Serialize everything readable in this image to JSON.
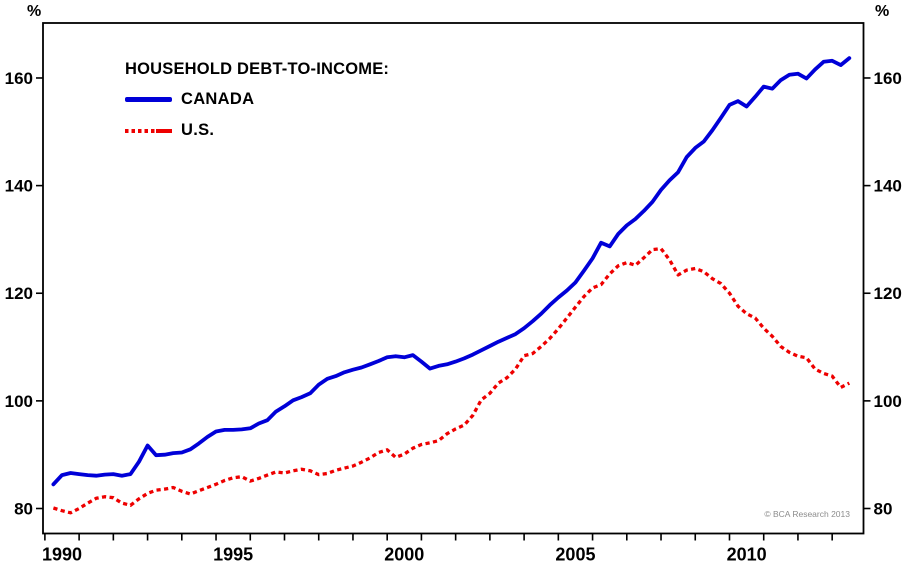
{
  "chart": {
    "percent_symbol_left": "%",
    "percent_symbol_right": "%",
    "legend_title": "HOUSEHOLD DEBT-TO-INCOME:",
    "copyright": "© BCA Research 2013",
    "colors": {
      "canada_line": "#0000d8",
      "us_line": "#ee0000",
      "axis": "#000000",
      "copyright_text": "#8c8c8c"
    }
  },
  "chart_data": {
    "type": "line",
    "title": "HOUSEHOLD DEBT-TO-INCOME:",
    "unit": "%",
    "grid": false,
    "legend_position": "top-left",
    "x_axis": {
      "tick_labels": [
        1990,
        1995,
        2000,
        2005,
        2010
      ],
      "minor_tick_start": 1989.5,
      "minor_tick_step": 1,
      "minor_tick_count": 24,
      "range": [
        1989.45,
        2013.4
      ]
    },
    "y_axis": {
      "tick_labels": [
        80,
        100,
        120,
        140,
        160
      ],
      "range": [
        75.3,
        170.2
      ],
      "tick_sides": [
        "left",
        "right"
      ]
    },
    "series": [
      {
        "name": "CANADA",
        "color": "#0000d8",
        "line_style": "solid",
        "x_start": 1989.75,
        "x_step": 0.25,
        "values": [
          84.5,
          86.2,
          86.6,
          86.4,
          86.2,
          86.1,
          86.3,
          86.4,
          86.1,
          86.4,
          88.7,
          91.7,
          89.9,
          90.0,
          90.3,
          90.4,
          91.0,
          92.1,
          93.3,
          94.3,
          94.6,
          94.6,
          94.7,
          94.9,
          95.8,
          96.4,
          98.0,
          99.0,
          100.1,
          100.7,
          101.4,
          103.0,
          104.1,
          104.6,
          105.3,
          105.8,
          106.2,
          106.8,
          107.4,
          108.1,
          108.3,
          108.1,
          108.5,
          107.3,
          106.0,
          106.5,
          106.8,
          107.3,
          107.9,
          108.6,
          109.4,
          110.2,
          111.0,
          111.7,
          112.4,
          113.5,
          114.8,
          116.2,
          117.8,
          119.2,
          120.5,
          122.0,
          124.2,
          126.5,
          129.4,
          128.7,
          131.0,
          132.6,
          133.8,
          135.3,
          137.0,
          139.2,
          141.0,
          142.5,
          145.3,
          147.0,
          148.2,
          150.3,
          152.6,
          155.0,
          155.7,
          154.7,
          156.5,
          158.4,
          158.0,
          159.6,
          160.6,
          160.8,
          159.9,
          161.6,
          163.0,
          163.2,
          162.4,
          163.7
        ]
      },
      {
        "name": "U.S.",
        "color": "#ee0000",
        "line_style": "dashed",
        "x_start": 1989.75,
        "x_step": 0.25,
        "values": [
          80.1,
          79.6,
          79.2,
          80.0,
          81.0,
          81.9,
          82.2,
          82.0,
          81.0,
          80.6,
          81.8,
          82.8,
          83.4,
          83.6,
          83.9,
          83.2,
          82.7,
          83.3,
          83.9,
          84.5,
          85.2,
          85.7,
          85.9,
          85.1,
          85.6,
          86.2,
          86.8,
          86.6,
          87.0,
          87.3,
          87.0,
          86.3,
          86.5,
          87.1,
          87.5,
          87.9,
          88.6,
          89.4,
          90.4,
          90.9,
          89.5,
          90.1,
          91.2,
          91.9,
          92.2,
          92.6,
          93.9,
          94.8,
          95.5,
          97.3,
          100.2,
          101.4,
          103.3,
          104.3,
          105.9,
          108.4,
          108.8,
          110.1,
          111.6,
          113.4,
          115.4,
          117.4,
          119.4,
          121.0,
          121.6,
          123.6,
          125.1,
          125.7,
          125.2,
          126.6,
          128.1,
          128.3,
          126.2,
          123.4,
          124.3,
          124.6,
          124.0,
          122.7,
          121.8,
          120.0,
          117.6,
          116.2,
          115.4,
          113.5,
          112.0,
          110.1,
          109.0,
          108.3,
          108.0,
          105.9,
          105.1,
          104.6,
          102.5,
          103.3
        ]
      }
    ]
  }
}
